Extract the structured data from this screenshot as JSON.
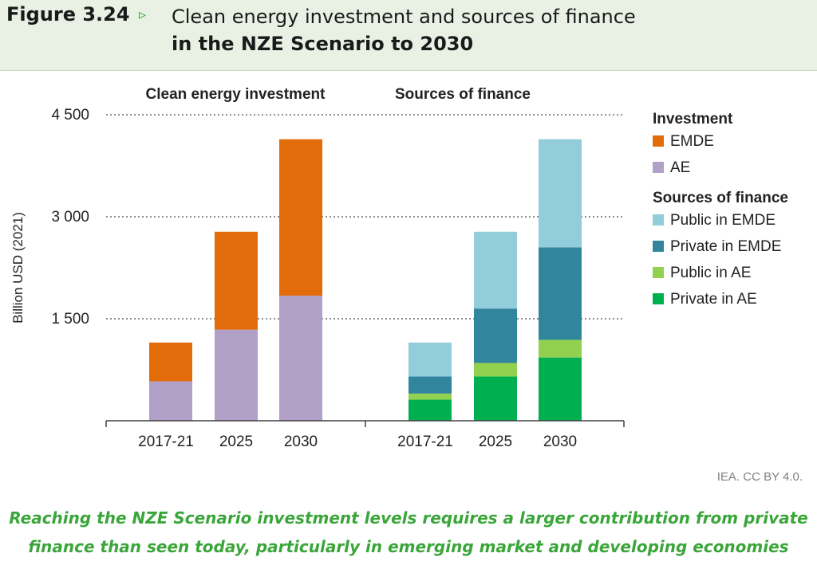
{
  "figure": {
    "label": "Figure 3.24",
    "arrow": "▹",
    "title_line1": "Clean energy investment and sources of finance",
    "title_line2": "in the NZE Scenario to 2030"
  },
  "credit": "IEA. CC BY 4.0.",
  "caption": {
    "line1": "Reaching the NZE Scenario investment levels requires a larger contribution from private",
    "line2": "finance than seen today, particularly in emerging market and developing economies"
  },
  "colors": {
    "emde": "#e36c0a",
    "ae": "#b1a0c7",
    "public_emde": "#92cddc",
    "private_emde": "#31859c",
    "public_ae": "#92d050",
    "private_ae": "#00b050",
    "grid": "#8c8c8c",
    "axis": "#404040"
  },
  "chart_data": {
    "type": "bar",
    "ylabel": "Billion USD (2021)",
    "ylim": [
      0,
      4500
    ],
    "yticks": [
      1500,
      3000,
      4500
    ],
    "ytick_labels": [
      "1 500",
      "3 000",
      "4 500"
    ],
    "grid": "horizontal dotted",
    "stacked": true,
    "panels": [
      {
        "title": "Clean energy investment",
        "categories": [
          "2017-21",
          "2025",
          "2030"
        ],
        "series": [
          {
            "name": "AE",
            "color_key": "ae",
            "values": [
              580,
              1340,
              1840
            ]
          },
          {
            "name": "EMDE",
            "color_key": "emde",
            "values": [
              570,
              1440,
              2300
            ]
          }
        ]
      },
      {
        "title": "Sources of finance",
        "categories": [
          "2017-21",
          "2025",
          "2030"
        ],
        "series": [
          {
            "name": "Private in AE",
            "color_key": "private_ae",
            "values": [
              310,
              650,
              930
            ]
          },
          {
            "name": "Public in AE",
            "color_key": "public_ae",
            "values": [
              90,
              200,
              260
            ]
          },
          {
            "name": "Private in EMDE",
            "color_key": "private_emde",
            "values": [
              250,
              800,
              1360
            ]
          },
          {
            "name": "Public in EMDE",
            "color_key": "public_emde",
            "values": [
              500,
              1130,
              1590
            ]
          }
        ]
      }
    ],
    "legend": {
      "placement": "right",
      "groups": [
        {
          "title": "Investment",
          "items": [
            {
              "name": "EMDE",
              "color_key": "emde"
            },
            {
              "name": "AE",
              "color_key": "ae"
            }
          ]
        },
        {
          "title": "Sources of finance",
          "items": [
            {
              "name": "Public in EMDE",
              "color_key": "public_emde"
            },
            {
              "name": "Private in EMDE",
              "color_key": "private_emde"
            },
            {
              "name": "Public in AE",
              "color_key": "public_ae"
            },
            {
              "name": "Private in AE",
              "color_key": "private_ae"
            }
          ]
        }
      ]
    }
  }
}
